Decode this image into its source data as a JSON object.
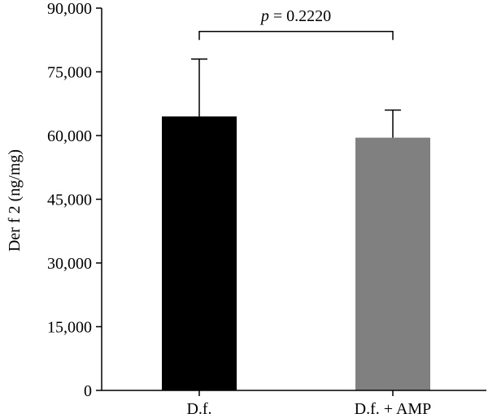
{
  "chart_data": {
    "type": "bar",
    "title": "",
    "xlabel": "",
    "ylabel": "Der f 2 (ng/mg)",
    "ylim": [
      0,
      90000
    ],
    "yticks": [
      0,
      15000,
      30000,
      45000,
      60000,
      75000,
      90000
    ],
    "ytick_labels": [
      "0",
      "15,000",
      "30,000",
      "45,000",
      "60,000",
      "75,000",
      "90,000"
    ],
    "categories": [
      "D.f.",
      "D.f. + AMP"
    ],
    "values": [
      64500,
      59500
    ],
    "error_upper": [
      78000,
      66000
    ],
    "bar_colors": [
      "#000000",
      "#808080"
    ],
    "grid": false,
    "annotation": {
      "p_symbol": "p",
      "p_rest": " = 0.2220",
      "bracket_y": 84500,
      "bracket_drop": 2000
    }
  }
}
